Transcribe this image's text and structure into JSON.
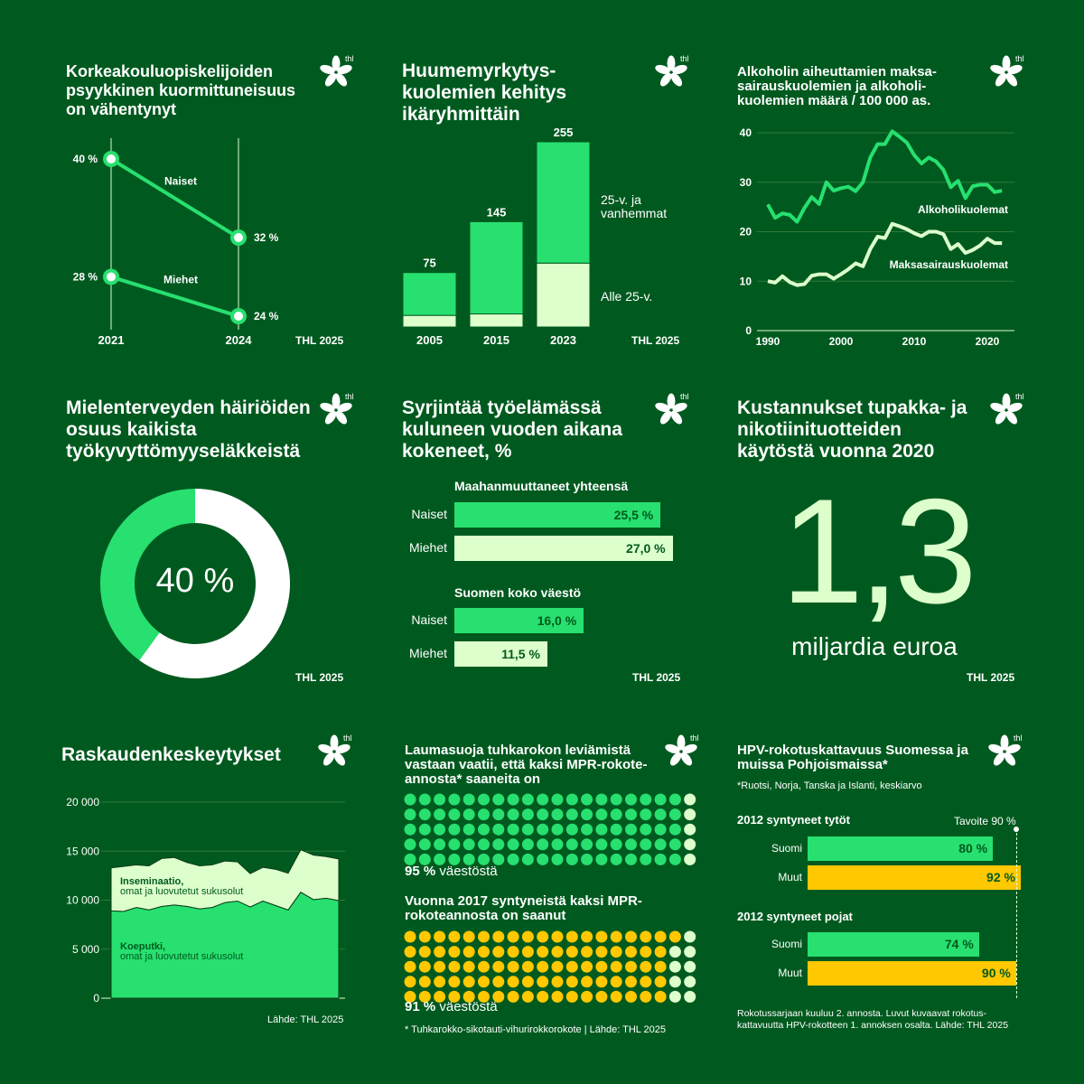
{
  "colors": {
    "background": "#005a1f",
    "green": "#27e06f",
    "light": "#ddffcc",
    "yellow": "#ffc800",
    "white": "#ffffff"
  },
  "logo_text": "thl",
  "p1": {
    "title": "Korkeakouluopiskelijoiden psyykkinen kuormittuneisuus on vähentynyt",
    "source": "THL 2025",
    "chart_data": {
      "type": "line",
      "categories": [
        "2021",
        "2024"
      ],
      "series": [
        {
          "name": "Naiset",
          "values": [
            40,
            32
          ],
          "labels": [
            "40 %",
            "32 %"
          ]
        },
        {
          "name": "Miehet",
          "values": [
            28,
            24
          ],
          "labels": [
            "28 %",
            "24 %"
          ]
        }
      ]
    }
  },
  "p2": {
    "title": "Huumemyrkytys-kuolemien kehitys ikäryhmittäin",
    "source": "THL 2025",
    "chart_data": {
      "type": "bar",
      "stacked": true,
      "categories": [
        "2005",
        "2015",
        "2023"
      ],
      "totals": [
        75,
        145,
        255
      ],
      "total_labels": [
        "75",
        "145",
        "255"
      ],
      "series": [
        {
          "name": "Alle 25-v.",
          "values": [
            16,
            18,
            88
          ]
        },
        {
          "name": "25-v. ja vanhemmat",
          "values": [
            59,
            127,
            167
          ]
        }
      ]
    }
  },
  "p3": {
    "title": "Alkoholin aiheuttamien maksa-sairauskuolemien ja alkoholi-kuolemien määrä / 100 000 as.",
    "chart_data": {
      "type": "line",
      "ylim": [
        0,
        40
      ],
      "yticks": [
        "0",
        "10",
        "20",
        "30",
        "40"
      ],
      "xticks": [
        "1990",
        "2000",
        "2010",
        "2020"
      ],
      "grid": true,
      "x": [
        1990,
        1991,
        1992,
        1993,
        1994,
        1995,
        1996,
        1997,
        1998,
        1999,
        2000,
        2001,
        2002,
        2003,
        2004,
        2005,
        2006,
        2007,
        2008,
        2009,
        2010,
        2011,
        2012,
        2013,
        2014,
        2015,
        2016,
        2017,
        2018,
        2019,
        2020,
        2021,
        2022
      ],
      "series": [
        {
          "name": "Alkoholikuolemat",
          "values": [
            25.5,
            22.8,
            23.7,
            23.4,
            22,
            24.8,
            27,
            25.6,
            30,
            28.3,
            28.8,
            29.1,
            28.2,
            30,
            35,
            37.7,
            37.7,
            40.3,
            39.2,
            38,
            35.5,
            33.8,
            35,
            34.2,
            32.5,
            29,
            30.3,
            26.8,
            29.2,
            29.5,
            29.5,
            28,
            28.3
          ]
        },
        {
          "name": "Maksasairauskuolemat",
          "values": [
            10,
            9.7,
            11,
            9.8,
            9.2,
            9.4,
            11.1,
            11.4,
            11.4,
            10.5,
            11.4,
            12.4,
            13.6,
            13,
            16.5,
            19,
            18.7,
            21.6,
            21.1,
            20.5,
            19.7,
            19.1,
            20,
            20,
            19.5,
            16.5,
            17.5,
            15.7,
            16.3,
            17.2,
            18.6,
            17.7,
            17.7
          ]
        }
      ]
    }
  },
  "p4": {
    "title": "Mielenterveyden häiriöiden osuus kaikista työkyvyttömyyseläkkeistä",
    "source": "THL 2025",
    "chart_data": {
      "type": "pie",
      "donut": true,
      "values": [
        40,
        60
      ],
      "center_value": "40",
      "center_unit": "%"
    }
  },
  "p5": {
    "title": "Syrjintää työelämässä kuluneen vuoden aikana kokeneet, %",
    "source": "THL 2025",
    "chart_data": {
      "type": "bar",
      "orientation": "horizontal",
      "groups": [
        {
          "name": "Maahanmuuttaneet yhteensä",
          "rows": [
            {
              "label": "Naiset",
              "value": 25.5,
              "text": "25,5 %"
            },
            {
              "label": "Miehet",
              "value": 27.0,
              "text": "27,0 %"
            }
          ]
        },
        {
          "name": "Suomen koko väestö",
          "rows": [
            {
              "label": "Naiset",
              "value": 16.0,
              "text": "16,0 %"
            },
            {
              "label": "Miehet",
              "value": 11.5,
              "text": "11,5 %"
            }
          ]
        }
      ]
    }
  },
  "p6": {
    "title": "Kustannukset tupakka- ja nikotiinituotteiden käytöstä vuonna 2020",
    "big": "1,3",
    "unit": "miljardia euroa",
    "source": "THL 2025"
  },
  "p7": {
    "title": "Raskaudenkeskeytykset",
    "source": "Lähde: THL 2025",
    "chart_data": {
      "type": "area",
      "stacked": true,
      "ylim": [
        0,
        20000
      ],
      "yticks": [
        "0",
        "5 000",
        "10 000",
        "15 000",
        "20 000"
      ],
      "grid": true,
      "series": [
        {
          "name": "Koeputki,",
          "sub": "omat ja luovutetut sukusolut",
          "values": [
            8900,
            8850,
            9250,
            9000,
            9350,
            9500,
            9350,
            9100,
            9250,
            9750,
            9900,
            9300,
            9900,
            9450,
            9000,
            10800,
            10050,
            10200,
            9950
          ]
        },
        {
          "name": "Inseminaatio,",
          "sub": "omat  ja luovutetut sukusolut",
          "values": [
            4400,
            4600,
            4350,
            4500,
            4900,
            4850,
            4500,
            4400,
            4350,
            4250,
            4000,
            3400,
            3450,
            3700,
            3750,
            4350,
            4550,
            4250,
            4250
          ]
        }
      ]
    }
  },
  "p8": {
    "title1": "Laumasuoja tuhkarokon leviämistä vastaan vaatii, että kaksi MPR-rokote-annosta* saaneita on",
    "value1": "95 %",
    "value1_unit": "väestöstä",
    "pct1": 95,
    "title2": "Vuonna 2017 syntyneistä kaksi MPR-rokoteannosta on saanut",
    "value2": "91 %",
    "value2_unit": "väestöstä",
    "pct2": 91,
    "footnote": "* Tuhkarokko-sikotauti-vihurirokkorokote | Lähde: THL 2025"
  },
  "p9": {
    "title": "HPV-rokotuskattavuus Suomessa ja muissa Pohjoismaissa*",
    "subtitle": "*Ruotsi, Norja, Tanska ja Islanti, keskiarvo",
    "target_label": "Tavoite 90 %",
    "target": 90,
    "chart_data": {
      "type": "bar",
      "orientation": "horizontal",
      "groups": [
        {
          "name": "2012 syntyneet tytöt",
          "rows": [
            {
              "label": "Suomi",
              "value": 80,
              "text": "80 %"
            },
            {
              "label": "Muut",
              "value": 92,
              "text": "92 %"
            }
          ]
        },
        {
          "name": "2012 syntyneet pojat",
          "rows": [
            {
              "label": "Suomi",
              "value": 74,
              "text": "74 %"
            },
            {
              "label": "Muut",
              "value": 90,
              "text": "90 %"
            }
          ]
        }
      ]
    },
    "footnote": "Rokotussarjaan kuuluu 2. annosta. Luvut kuvaavat rokotus-kattavuutta HPV-rokotteen 1. annoksen osalta. Lähde: THL 2025"
  }
}
